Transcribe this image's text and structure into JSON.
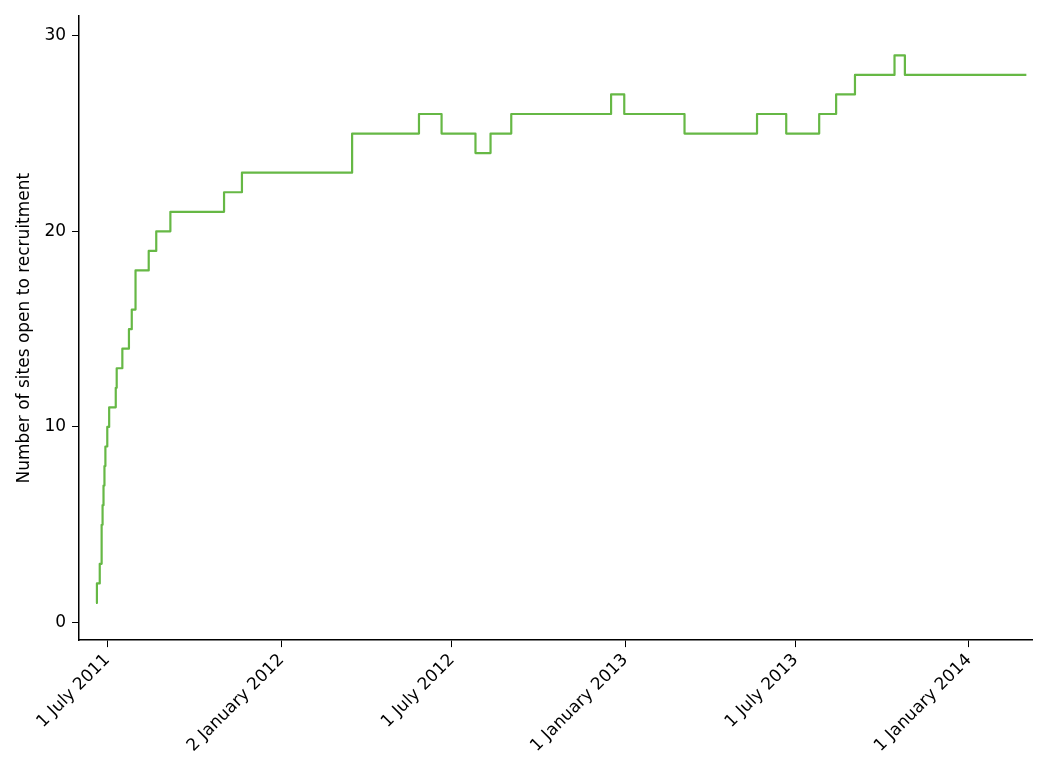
{
  "chart_data": {
    "type": "step",
    "ylabel": "Number of sites open to recruitment",
    "x": [
      "2011-06-19",
      "2011-06-20",
      "2011-06-23",
      "2011-06-25",
      "2011-06-26",
      "2011-06-27",
      "2011-06-28",
      "2011-06-29",
      "2011-07-01",
      "2011-07-03",
      "2011-07-10",
      "2011-07-11",
      "2011-07-17",
      "2011-07-24",
      "2011-07-27",
      "2011-07-31",
      "2011-08-14",
      "2011-08-22",
      "2011-09-06",
      "2011-11-02",
      "2011-11-21",
      "2012-03-17",
      "2012-05-27",
      "2012-06-20",
      "2012-07-26",
      "2012-08-11",
      "2012-09-02",
      "2012-12-17",
      "2012-12-31",
      "2013-03-05",
      "2013-05-21",
      "2013-06-21",
      "2013-07-26",
      "2013-08-13",
      "2013-09-02",
      "2013-10-14",
      "2013-10-25",
      "2014-03-03"
    ],
    "series": [
      {
        "color": "#66b845",
        "values": [
          1,
          2,
          3,
          5,
          6,
          7,
          8,
          9,
          10,
          11,
          12,
          13,
          14,
          15,
          16,
          18,
          19,
          20,
          21,
          22,
          23,
          25,
          26,
          25,
          24,
          25,
          26,
          27,
          26,
          25,
          26,
          25,
          26,
          27,
          28,
          29,
          28,
          28
        ]
      }
    ],
    "xlim": [
      "2011-06-01",
      "2014-03-09"
    ],
    "xticks": [
      {
        "value": "2011-07-01",
        "label": "1 July 2011"
      },
      {
        "value": "2012-01-02",
        "label": "2 January 2012"
      },
      {
        "value": "2012-07-01",
        "label": "1 July 2012"
      },
      {
        "value": "2013-01-01",
        "label": "1 January 2013"
      },
      {
        "value": "2013-07-01",
        "label": "1 July 2013"
      },
      {
        "value": "2014-01-01",
        "label": "1 January 2014"
      }
    ],
    "ylim": [
      -0.9,
      31
    ],
    "yticks": [
      0,
      10,
      20,
      30
    ],
    "grid": false,
    "legend": false,
    "marker": "none",
    "line_style": "solid"
  }
}
